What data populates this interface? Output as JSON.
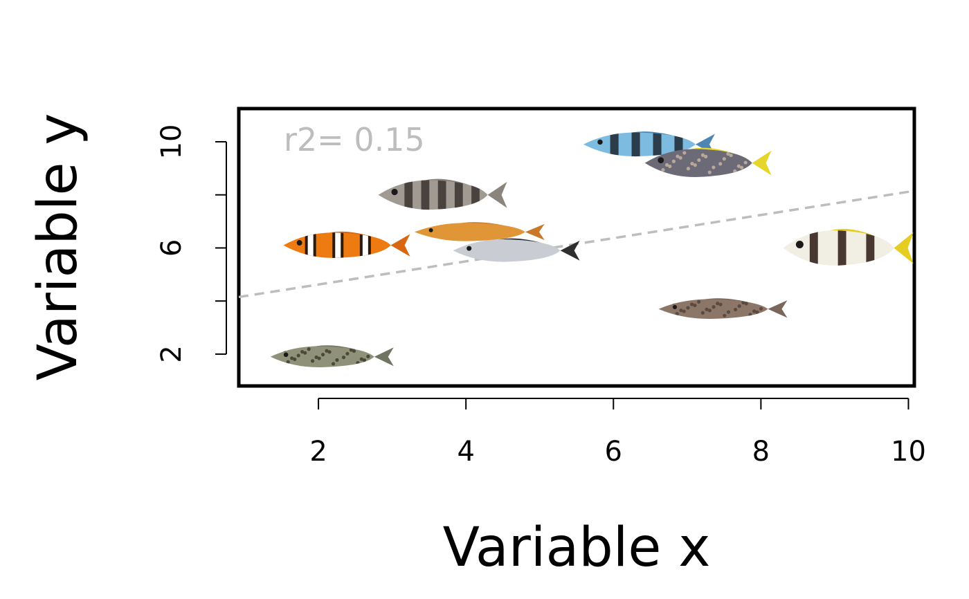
{
  "chart_data": {
    "type": "scatter",
    "title": "",
    "xlabel": "Variable x",
    "ylabel": "Variable y",
    "xlim": [
      0.92,
      10.08
    ],
    "ylim": [
      0.8,
      11.25
    ],
    "xticks": [
      2,
      4,
      6,
      8,
      10
    ],
    "yticks": [
      2,
      6,
      10
    ],
    "yminor_ticks": [
      4,
      8
    ],
    "grid": false,
    "legend": "none",
    "annotation": "r2= 0.15",
    "trendline": {
      "style": "dashed",
      "color": "#bdbdbd",
      "y_at_xmin": 4.15,
      "y_at_xmax": 8.15
    },
    "marker": "fish-images",
    "points": [
      {
        "x": 2.1,
        "y": 1.9,
        "fish": "spotted-rabbitfish"
      },
      {
        "x": 2.3,
        "y": 6.1,
        "fish": "clownfish"
      },
      {
        "x": 3.6,
        "y": 8.0,
        "fish": "barred-cichlid"
      },
      {
        "x": 4.1,
        "y": 6.6,
        "fish": "orange-wrasse"
      },
      {
        "x": 4.6,
        "y": 5.9,
        "fish": "silver-damselfish"
      },
      {
        "x": 6.4,
        "y": 9.9,
        "fish": "sergeant-major"
      },
      {
        "x": 7.2,
        "y": 9.2,
        "fish": "spotted-angelfish"
      },
      {
        "x": 7.4,
        "y": 3.7,
        "fish": "brown-grouper"
      },
      {
        "x": 9.1,
        "y": 6.0,
        "fish": "banded-butterflyfish"
      }
    ]
  }
}
